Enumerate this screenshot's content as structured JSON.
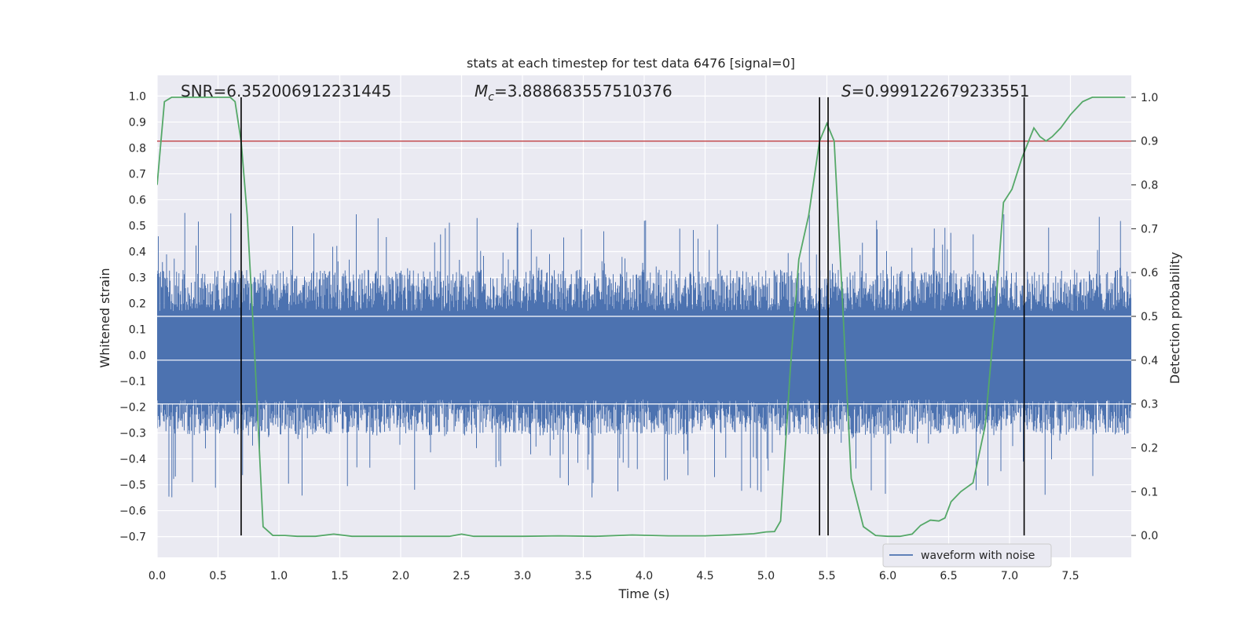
{
  "chart_data": {
    "type": "line",
    "title": "stats at each timestep for test data 6476 [signal=0]",
    "xlabel": "Time (s)",
    "ylabel": "Whitened strain",
    "ylabel_right": "Detection probability",
    "xlim": [
      0.0,
      8.0
    ],
    "ylim": [
      -0.78,
      1.08
    ],
    "ylim_right": [
      -0.05,
      1.05
    ],
    "x_ticks": [
      "0.0",
      "0.5",
      "1.0",
      "1.5",
      "2.0",
      "2.5",
      "3.0",
      "3.5",
      "4.0",
      "4.5",
      "5.0",
      "5.5",
      "6.0",
      "6.5",
      "7.0",
      "7.5"
    ],
    "y_ticks": [
      "1.0",
      "0.9",
      "0.8",
      "0.7",
      "0.6",
      "0.5",
      "0.4",
      "0.3",
      "0.2",
      "0.1",
      "0.0",
      "−0.1",
      "−0.2",
      "−0.3",
      "−0.4",
      "−0.5",
      "−0.6",
      "−0.7"
    ],
    "y_ticks_right": [
      "1.0",
      "0.9",
      "0.8",
      "0.7",
      "0.6",
      "0.5",
      "0.4",
      "0.3",
      "0.2",
      "0.1",
      "0.0"
    ],
    "annotations": {
      "snr": "SNR=6.352006912231445",
      "mc_symbol": "M",
      "mc_sub": "c",
      "mc_value": "=3.888683557510376",
      "s_symbol": "S",
      "s_value": "=0.999122679233551"
    },
    "legend": {
      "label": "waveform with noise",
      "position": "lower-right"
    },
    "threshold": 0.9,
    "threshold_color": "#c44e52",
    "vlines": [
      0.69,
      5.44,
      5.51,
      7.12
    ],
    "colors": {
      "waveform": "#4c72b0",
      "probability": "#55a868",
      "background": "#eaeaf2"
    },
    "series": [
      {
        "name": "waveform with noise",
        "amplitude_core": 0.17,
        "amplitude_peak": 0.55,
        "note": "dense noise, x 0.0 to 8.0"
      },
      {
        "name": "detection probability",
        "x": [
          0.0,
          0.06,
          0.12,
          0.2,
          0.3,
          0.4,
          0.5,
          0.6,
          0.64,
          0.69,
          0.74,
          0.8,
          0.87,
          0.95,
          1.05,
          1.15,
          1.3,
          1.45,
          1.6,
          1.8,
          2.0,
          2.2,
          2.4,
          2.5,
          2.6,
          2.8,
          3.0,
          3.3,
          3.6,
          3.9,
          4.2,
          4.5,
          4.7,
          4.9,
          5.0,
          5.07,
          5.12,
          5.2,
          5.27,
          5.35,
          5.44,
          5.5,
          5.56,
          5.62,
          5.7,
          5.8,
          5.9,
          6.0,
          6.1,
          6.2,
          6.27,
          6.35,
          6.42,
          6.47,
          6.52,
          6.6,
          6.7,
          6.8,
          6.88,
          6.95,
          7.02,
          7.1,
          7.2,
          7.25,
          7.3,
          7.35,
          7.42,
          7.5,
          7.6,
          7.68,
          7.75,
          7.83,
          7.95
        ],
        "values": [
          0.8,
          0.99,
          1.0,
          1.0,
          1.0,
          1.0,
          1.0,
          1.0,
          0.99,
          0.9,
          0.73,
          0.42,
          0.02,
          0.0,
          0.0,
          -0.002,
          -0.002,
          0.003,
          -0.002,
          -0.002,
          -0.002,
          -0.002,
          -0.002,
          0.003,
          -0.002,
          -0.002,
          -0.002,
          -0.001,
          -0.002,
          0.001,
          -0.001,
          -0.001,
          0.001,
          0.004,
          0.008,
          0.009,
          0.033,
          0.38,
          0.63,
          0.73,
          0.9,
          0.94,
          0.9,
          0.58,
          0.13,
          0.02,
          0.0,
          -0.002,
          -0.002,
          0.003,
          0.023,
          0.035,
          0.033,
          0.04,
          0.077,
          0.1,
          0.12,
          0.25,
          0.5,
          0.76,
          0.79,
          0.86,
          0.93,
          0.91,
          0.9,
          0.91,
          0.93,
          0.96,
          0.99,
          1.0,
          1.0,
          1.0,
          1.0
        ]
      }
    ]
  }
}
